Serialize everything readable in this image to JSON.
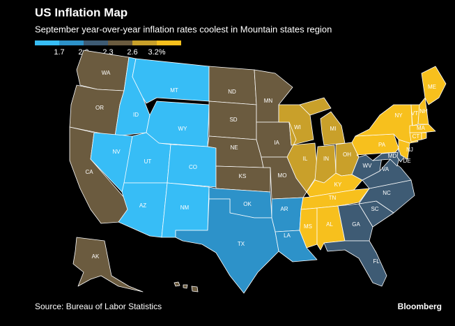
{
  "header": {
    "title": "US Inflation Map",
    "subtitle": "September year-over-year inflation rates coolest in Mountain states region"
  },
  "legend": {
    "colors": [
      "#37bdf6",
      "#2d92c9",
      "#3e5b74",
      "#6b5b3f",
      "#c9a02a",
      "#f7c01d"
    ],
    "labels": [
      "1.7",
      "2.0",
      "2.3",
      "2.6",
      "3.2%"
    ]
  },
  "states": [
    {
      "label": "WA",
      "color": "#6b5b3f"
    },
    {
      "label": "OR",
      "color": "#6b5b3f"
    },
    {
      "label": "CA",
      "color": "#6b5b3f"
    },
    {
      "label": "ID",
      "color": "#37bdf6"
    },
    {
      "label": "NV",
      "color": "#37bdf6"
    },
    {
      "label": "MT",
      "color": "#37bdf6"
    },
    {
      "label": "WY",
      "color": "#37bdf6"
    },
    {
      "label": "UT",
      "color": "#37bdf6"
    },
    {
      "label": "CO",
      "color": "#37bdf6"
    },
    {
      "label": "AZ",
      "color": "#37bdf6"
    },
    {
      "label": "NM",
      "color": "#37bdf6"
    },
    {
      "label": "ND",
      "color": "#6b5b3f"
    },
    {
      "label": "SD",
      "color": "#6b5b3f"
    },
    {
      "label": "NE",
      "color": "#6b5b3f"
    },
    {
      "label": "KS",
      "color": "#6b5b3f"
    },
    {
      "label": "OK",
      "color": "#2d92c9"
    },
    {
      "label": "TX",
      "color": "#2d92c9"
    },
    {
      "label": "MN",
      "color": "#6b5b3f"
    },
    {
      "label": "IA",
      "color": "#6b5b3f"
    },
    {
      "label": "MO",
      "color": "#6b5b3f"
    },
    {
      "label": "AR",
      "color": "#2d92c9"
    },
    {
      "label": "LA",
      "color": "#2d92c9"
    },
    {
      "label": "WI",
      "color": "#c9a02a"
    },
    {
      "label": "IL",
      "color": "#c9a02a"
    },
    {
      "label": "MI",
      "color": "#c9a02a"
    },
    {
      "label": "IN",
      "color": "#c9a02a"
    },
    {
      "label": "OH",
      "color": "#c9a02a"
    },
    {
      "label": "KY",
      "color": "#f7c01d"
    },
    {
      "label": "TN",
      "color": "#f7c01d"
    },
    {
      "label": "MS",
      "color": "#f7c01d"
    },
    {
      "label": "AL",
      "color": "#f7c01d"
    },
    {
      "label": "GA",
      "color": "#3e5b74"
    },
    {
      "label": "FL",
      "color": "#3e5b74"
    },
    {
      "label": "SC",
      "color": "#3e5b74"
    },
    {
      "label": "NC",
      "color": "#3e5b74"
    },
    {
      "label": "VA",
      "color": "#3e5b74"
    },
    {
      "label": "WV",
      "color": "#3e5b74"
    },
    {
      "label": "PA",
      "color": "#f7c01d"
    },
    {
      "label": "NY",
      "color": "#f7c01d"
    },
    {
      "label": "MD",
      "color": "#3e5b74"
    },
    {
      "label": "DE",
      "color": "#3e5b74"
    },
    {
      "label": "NJ",
      "color": "#f7c01d"
    },
    {
      "label": "CT",
      "color": "#f7c01d"
    },
    {
      "label": null,
      "color": "#f7c01d"
    },
    {
      "label": "MA",
      "color": "#f7c01d"
    },
    {
      "label": "VT",
      "color": "#f7c01d"
    },
    {
      "label": "NH",
      "color": "#f7c01d"
    },
    {
      "label": "ME",
      "color": "#f7c01d"
    },
    {
      "label": "AK",
      "color": "#6b5b3f"
    },
    {
      "label": null,
      "color": "#6b5b3f"
    }
  ],
  "footer": {
    "source": "Source: Bureau of Labor Statistics",
    "brand": "Bloomberg"
  }
}
